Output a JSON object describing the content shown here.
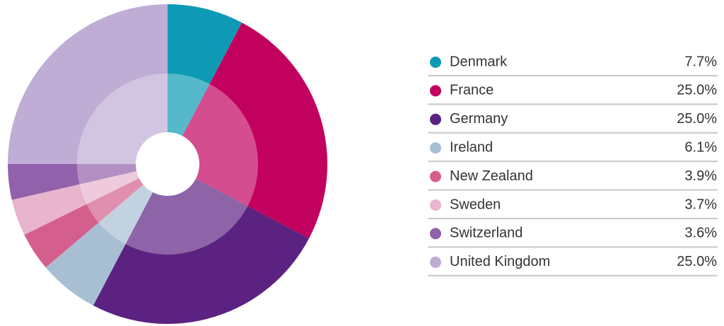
{
  "chart_data": {
    "type": "pie",
    "categories": [
      "Denmark",
      "France",
      "Germany",
      "Ireland",
      "New Zealand",
      "Sweden",
      "Switzerland",
      "United Kingdom"
    ],
    "values": [
      7.7,
      25.0,
      25.0,
      6.1,
      3.9,
      3.7,
      3.6,
      25.0
    ],
    "value_labels": [
      "7.7%",
      "25.0%",
      "25.0%",
      "6.1%",
      "3.9%",
      "3.7%",
      "3.6%",
      "25.0%"
    ],
    "colors": [
      "#0e9ab5",
      "#c2005e",
      "#5b2281",
      "#a8bfd3",
      "#d55f8c",
      "#e9b4cd",
      "#9161ab",
      "#bfadd6"
    ]
  }
}
